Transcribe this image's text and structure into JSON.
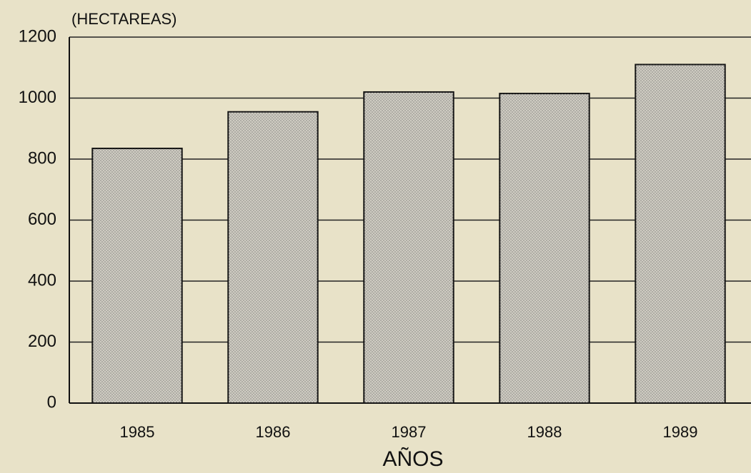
{
  "chart_data": {
    "type": "bar",
    "y_label": "(HECTAREAS)",
    "x_label": "AÑOS",
    "categories": [
      "1985",
      "1986",
      "1987",
      "1988",
      "1989"
    ],
    "values": [
      835,
      955,
      1020,
      1015,
      1110
    ],
    "color": "#cfccc2",
    "ylim": [
      0,
      1200
    ],
    "yticks": [
      0,
      200,
      400,
      600,
      800,
      1000,
      1200
    ],
    "grid": true
  }
}
